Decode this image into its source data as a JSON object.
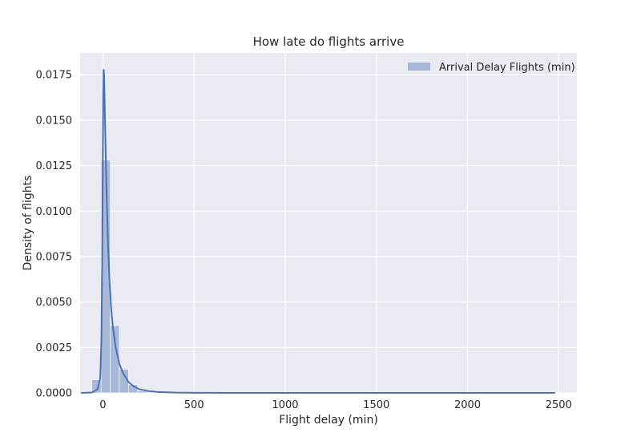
{
  "chart_data": {
    "type": "histogram",
    "title": "How late do flights arrive",
    "xlabel": "Flight delay (min)",
    "ylabel": "Density of flights",
    "xlim": [
      -125,
      2600
    ],
    "ylim": [
      0,
      0.0187
    ],
    "x_ticks": [
      0,
      500,
      1000,
      1500,
      2000,
      2500
    ],
    "x_tick_labels": [
      "0",
      "500",
      "1000",
      "1500",
      "2000",
      "2500"
    ],
    "y_ticks": [
      0,
      0.0025,
      0.005,
      0.0075,
      0.01,
      0.0125,
      0.015,
      0.0175
    ],
    "y_tick_labels": [
      "0.0000",
      "0.0025",
      "0.0050",
      "0.0075",
      "0.0100",
      "0.0125",
      "0.0150",
      "0.0175"
    ],
    "grid": true,
    "legend_position": "top-right",
    "legend": [
      "Arrival Delay Flights (min)"
    ],
    "histogram": {
      "name": "Arrival Delay Flights (min)",
      "bin_edges": [
        -60,
        -10,
        40,
        90,
        140,
        190,
        240
      ],
      "densities": [
        0.00072,
        0.0128,
        0.0037,
        0.0013,
        0.00045,
        0.0001
      ]
    },
    "kde": {
      "x": [
        -120,
        -60,
        -30,
        -15,
        -8,
        -3,
        0,
        2,
        4,
        6,
        8,
        10,
        14,
        20,
        28,
        36,
        45,
        55,
        70,
        90,
        110,
        140,
        170,
        200,
        250,
        300,
        400,
        500,
        700,
        1000,
        1500,
        2000,
        2480
      ],
      "y": [
        0,
        2e-05,
        0.0002,
        0.0008,
        0.003,
        0.0083,
        0.0135,
        0.0165,
        0.0178,
        0.0176,
        0.0168,
        0.0158,
        0.0138,
        0.011,
        0.0082,
        0.0062,
        0.0047,
        0.0036,
        0.0025,
        0.0016,
        0.0011,
        0.0006,
        0.00035,
        0.0002,
        0.0001,
        5e-05,
        1.5e-05,
        5e-06,
        2e-06,
        1e-06,
        0,
        0,
        0
      ]
    },
    "colors": {
      "background": "#eaeaf2",
      "grid": "#ffffff",
      "hist_fill": "#a1b3d6",
      "kde_line": "#4c72b0"
    }
  }
}
